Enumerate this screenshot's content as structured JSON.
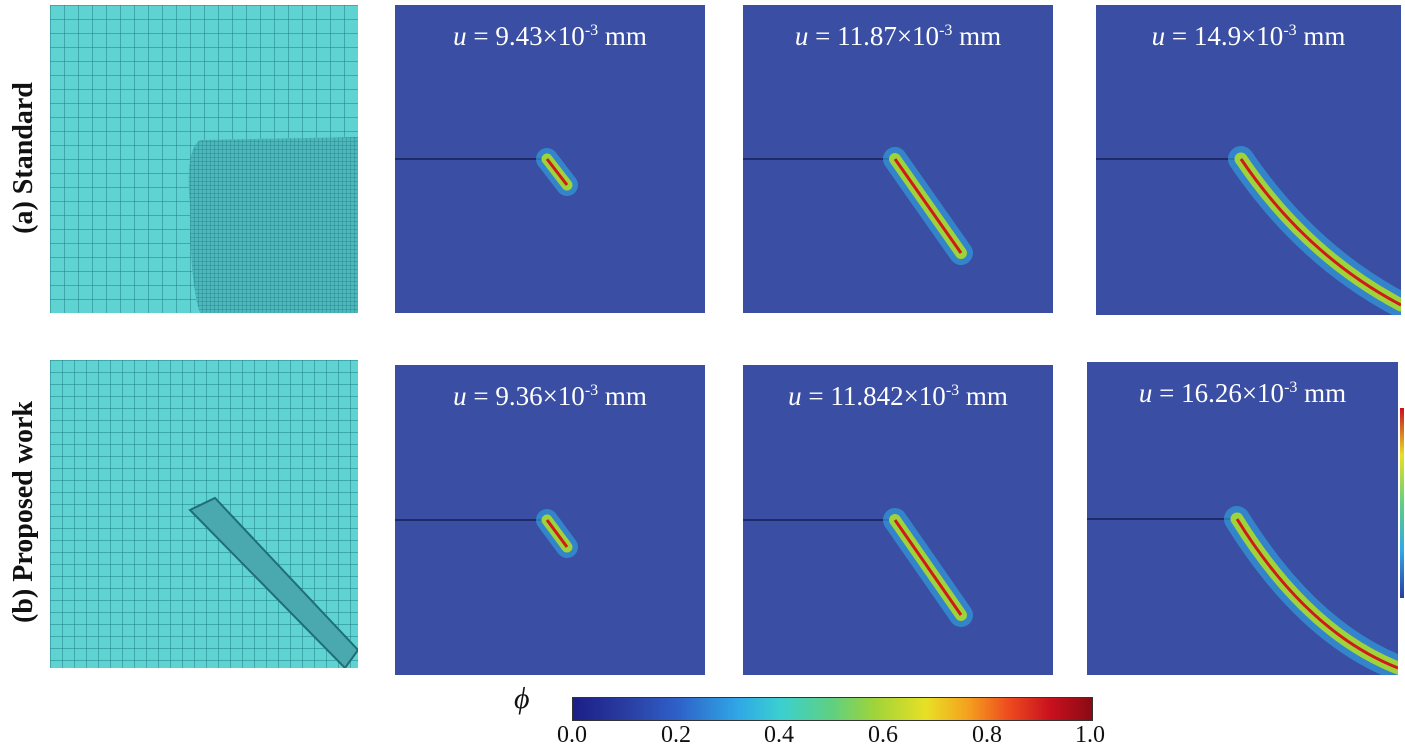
{
  "rows": [
    {
      "label": "(a) Standard",
      "panels": [
        {
          "prefix": "u",
          "eq": " = ",
          "value": "9.43×10",
          "exp": "-3",
          "unit": " mm"
        },
        {
          "prefix": "u",
          "eq": " = ",
          "value": "11.87×10",
          "exp": "-3",
          "unit": " mm"
        },
        {
          "prefix": "u",
          "eq": " = ",
          "value": "14.9×10",
          "exp": "-3",
          "unit": " mm"
        }
      ]
    },
    {
      "label": "(b) Proposed work",
      "panels": [
        {
          "prefix": "u",
          "eq": " = ",
          "value": "9.36×10",
          "exp": "-3",
          "unit": " mm"
        },
        {
          "prefix": "u",
          "eq": " = ",
          "value": "11.842×10",
          "exp": "-3",
          "unit": " mm"
        },
        {
          "prefix": "u",
          "eq": " = ",
          "value": "16.26×10",
          "exp": "-3",
          "unit": " mm"
        }
      ]
    }
  ],
  "colorbar": {
    "symbol": "ϕ",
    "ticks": [
      "0.0",
      "0.2",
      "0.4",
      "0.6",
      "0.8",
      "1.0"
    ]
  },
  "colors": {
    "field": "#3a4ea3",
    "mesh": "#5fd2d2",
    "mesh_line": "#1e7f86",
    "crack_core": "#d01a1a"
  }
}
